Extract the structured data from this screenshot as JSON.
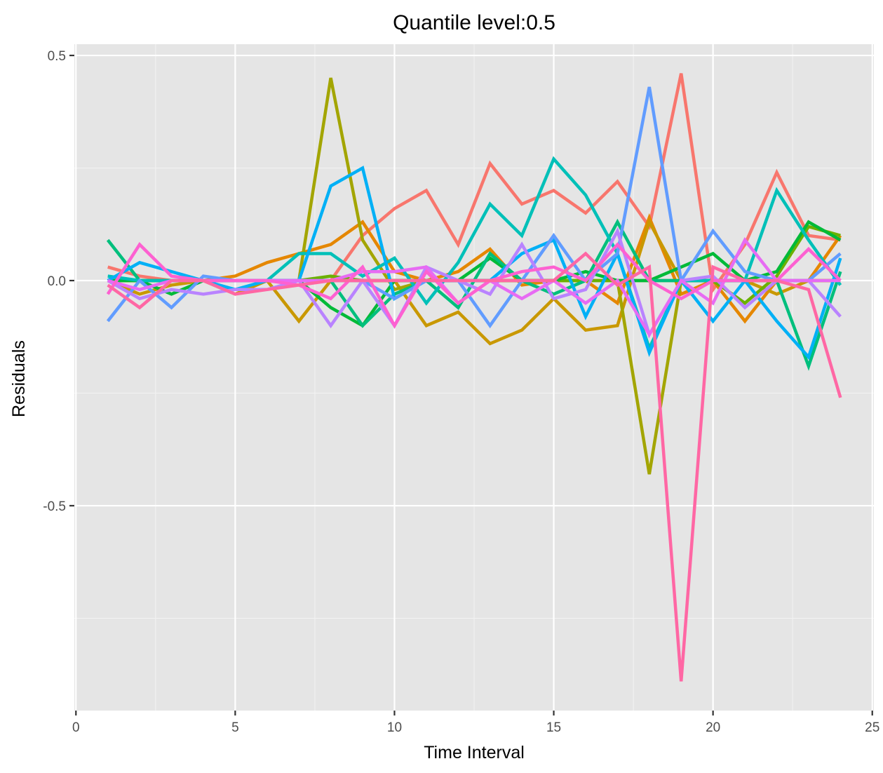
{
  "chart_data": {
    "type": "line",
    "title": "Quantile level:0.5",
    "xlabel": "Time Interval",
    "ylabel": "Residuals",
    "xlim": [
      -0.05,
      25.05
    ],
    "ylim": [
      -0.955,
      0.525
    ],
    "x_ticks": [
      0,
      5,
      10,
      15,
      20,
      25
    ],
    "y_ticks": [
      -0.5,
      0.0,
      0.5
    ],
    "y_tick_labels": [
      "-0.5",
      "0.0",
      "0.5"
    ],
    "grid": true,
    "legend": "none",
    "background": "#e5e5e5",
    "x": [
      1,
      2,
      3,
      4,
      5,
      6,
      7,
      8,
      9,
      10,
      11,
      12,
      13,
      14,
      15,
      16,
      17,
      18,
      19,
      20,
      21,
      22,
      23,
      24
    ],
    "series": [
      {
        "color": "#f8766d",
        "values": [
          0.03,
          0.01,
          0.0,
          0.0,
          0.0,
          0.0,
          0.0,
          0.0,
          0.1,
          0.16,
          0.2,
          0.08,
          0.26,
          0.17,
          0.2,
          0.15,
          0.22,
          0.12,
          0.46,
          -0.02,
          0.08,
          0.24,
          0.1,
          0.09
        ]
      },
      {
        "color": "#e58700",
        "values": [
          0.0,
          0.0,
          0.0,
          0.0,
          0.01,
          0.04,
          0.06,
          0.08,
          0.13,
          0.02,
          0.0,
          0.02,
          0.07,
          -0.01,
          0.0,
          0.0,
          -0.05,
          0.14,
          -0.03,
          0.0,
          -0.09,
          0.0,
          0.0,
          0.1
        ]
      },
      {
        "color": "#c99800",
        "values": [
          0.0,
          -0.03,
          -0.01,
          0.0,
          -0.03,
          0.0,
          -0.09,
          0.0,
          0.0,
          0.0,
          -0.1,
          -0.07,
          -0.14,
          -0.11,
          -0.04,
          -0.11,
          -0.1,
          0.13,
          0.0,
          0.0,
          0.0,
          -0.03,
          0.0,
          0.0
        ]
      },
      {
        "color": "#a3a500",
        "values": [
          0.0,
          0.0,
          0.0,
          0.0,
          0.0,
          0.0,
          0.0,
          0.45,
          0.09,
          -0.02,
          0.0,
          0.0,
          0.0,
          0.0,
          0.0,
          0.0,
          0.0,
          -0.43,
          0.0,
          0.0,
          0.0,
          0.0,
          0.0,
          0.0
        ]
      },
      {
        "color": "#6bb100",
        "values": [
          0.0,
          0.0,
          0.0,
          0.0,
          0.0,
          0.0,
          0.0,
          0.01,
          0.0,
          0.0,
          0.0,
          0.0,
          0.0,
          0.0,
          0.0,
          0.0,
          0.0,
          0.0,
          0.0,
          0.0,
          -0.05,
          0.01,
          0.12,
          0.1
        ]
      },
      {
        "color": "#00ba38",
        "values": [
          0.0,
          0.0,
          -0.03,
          0.0,
          0.0,
          0.0,
          0.0,
          -0.06,
          -0.1,
          0.0,
          0.0,
          0.0,
          0.05,
          0.0,
          0.0,
          0.02,
          0.0,
          0.0,
          0.03,
          0.06,
          0.0,
          0.02,
          0.13,
          0.09
        ]
      },
      {
        "color": "#00bf7d",
        "values": [
          0.09,
          0.0,
          0.0,
          0.0,
          0.0,
          0.0,
          0.0,
          0.0,
          -0.1,
          -0.03,
          0.0,
          -0.06,
          0.06,
          0.0,
          -0.03,
          0.0,
          0.13,
          0.0,
          0.0,
          0.0,
          0.0,
          0.0,
          -0.19,
          0.02
        ]
      },
      {
        "color": "#00c0b8",
        "values": [
          0.01,
          0.0,
          0.0,
          0.0,
          0.0,
          0.0,
          0.06,
          0.06,
          0.01,
          0.05,
          -0.05,
          0.04,
          0.17,
          0.1,
          0.27,
          0.19,
          0.06,
          -0.15,
          0.0,
          0.0,
          0.0,
          0.2,
          0.09,
          -0.01
        ]
      },
      {
        "color": "#00b0f6",
        "values": [
          0.0,
          0.04,
          0.02,
          0.0,
          -0.02,
          0.0,
          0.0,
          0.21,
          0.25,
          -0.04,
          0.0,
          0.0,
          0.0,
          0.06,
          0.09,
          -0.08,
          0.06,
          -0.16,
          0.0,
          -0.09,
          0.0,
          -0.09,
          -0.17,
          0.05
        ]
      },
      {
        "color": "#619cff",
        "values": [
          -0.09,
          0.0,
          -0.06,
          0.01,
          0.0,
          0.0,
          0.0,
          0.0,
          0.0,
          -0.04,
          0.0,
          0.0,
          -0.1,
          0.0,
          0.1,
          0.0,
          0.06,
          0.43,
          0.0,
          0.11,
          0.02,
          0.0,
          0.0,
          0.06
        ]
      },
      {
        "color": "#b983ff",
        "values": [
          0.0,
          -0.04,
          -0.02,
          -0.03,
          -0.02,
          -0.02,
          0.0,
          -0.1,
          0.0,
          -0.1,
          0.03,
          0.0,
          -0.03,
          0.08,
          -0.04,
          -0.02,
          0.11,
          -0.12,
          0.0,
          0.01,
          -0.06,
          0.0,
          0.0,
          -0.08
        ]
      },
      {
        "color": "#e76bf3",
        "values": [
          0.0,
          -0.02,
          0.0,
          0.0,
          0.0,
          0.0,
          0.0,
          0.0,
          0.02,
          0.02,
          0.03,
          -0.05,
          0.0,
          -0.04,
          0.0,
          -0.05,
          0.0,
          -0.12,
          0.0,
          -0.05,
          0.09,
          0.0,
          0.0,
          0.0
        ]
      },
      {
        "color": "#fd61d1",
        "values": [
          -0.03,
          0.08,
          0.01,
          0.0,
          0.0,
          0.0,
          -0.01,
          -0.04,
          0.03,
          -0.1,
          0.02,
          -0.05,
          0.0,
          0.02,
          0.03,
          0.0,
          0.08,
          0.0,
          -0.04,
          0.0,
          0.0,
          0.0,
          0.07,
          0.0
        ]
      },
      {
        "color": "#ff67a4",
        "values": [
          -0.01,
          -0.06,
          0.0,
          0.0,
          -0.03,
          -0.02,
          -0.01,
          0.0,
          0.0,
          0.0,
          0.0,
          0.0,
          0.0,
          0.0,
          0.0,
          0.06,
          -0.01,
          0.03,
          -0.89,
          0.03,
          0.0,
          0.0,
          -0.02,
          -0.26
        ]
      }
    ]
  }
}
